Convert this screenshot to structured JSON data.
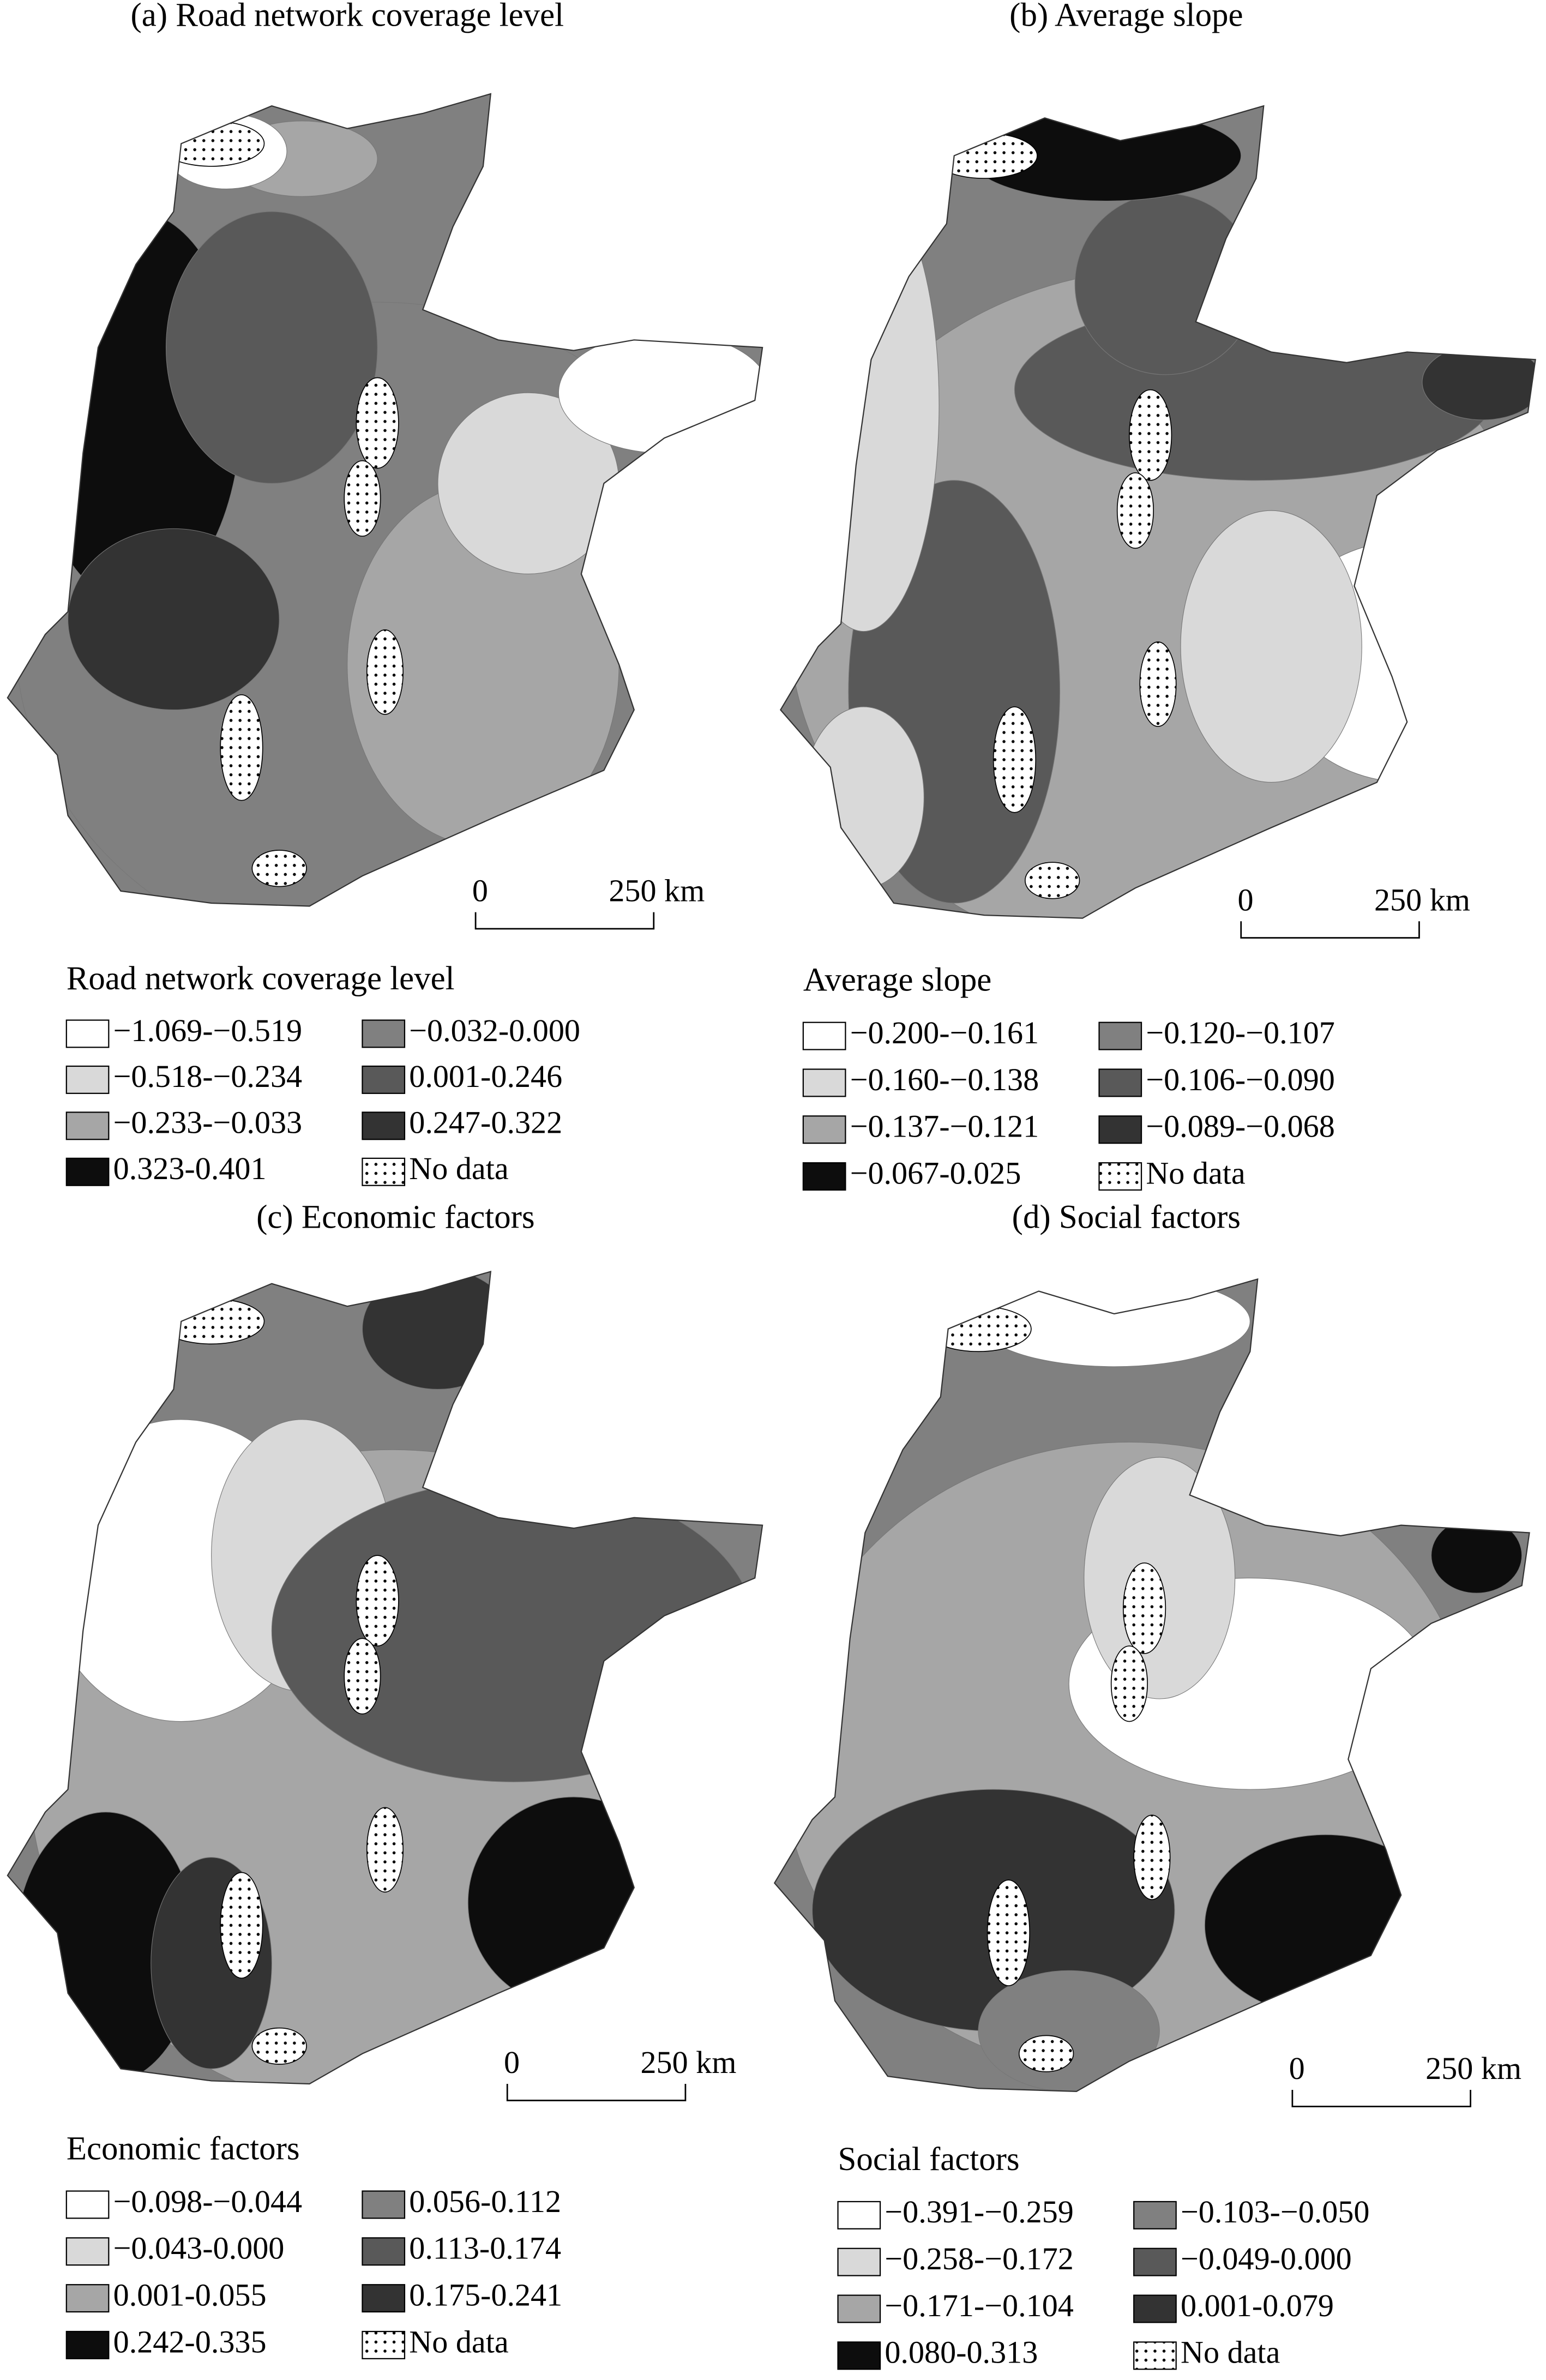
{
  "panels": [
    {
      "title": "(a) Road network coverage level",
      "legend_title": "Road network coverage level",
      "legend": [
        {
          "label": "−1.069-−0.519",
          "color": "#ffffff"
        },
        {
          "label": "−0.518-−0.234",
          "color": "#d9d9d9"
        },
        {
          "label": "−0.233-−0.033",
          "color": "#a6a6a6"
        },
        {
          "label": "−0.032-0.000",
          "color": "#808080"
        },
        {
          "label": "0.001-0.246",
          "color": "#595959"
        },
        {
          "label": "0.247-0.322",
          "color": "#333333"
        },
        {
          "label": "0.323-0.401",
          "color": "#0d0d0d"
        },
        {
          "label": "No data"
        }
      ],
      "scale": [
        "0",
        "250 km"
      ]
    },
    {
      "title": "(b) Average slope",
      "legend_title": "Average slope",
      "legend": [
        {
          "label": "−0.200-−0.161",
          "color": "#ffffff"
        },
        {
          "label": "−0.160-−0.138",
          "color": "#d9d9d9"
        },
        {
          "label": "−0.137-−0.121",
          "color": "#a6a6a6"
        },
        {
          "label": "−0.120-−0.107",
          "color": "#808080"
        },
        {
          "label": "−0.106-−0.090",
          "color": "#595959"
        },
        {
          "label": "−0.089-−0.068",
          "color": "#333333"
        },
        {
          "label": "−0.067-0.025",
          "color": "#0d0d0d"
        },
        {
          "label": "No data"
        }
      ],
      "scale": [
        "0",
        "250 km"
      ]
    },
    {
      "title": "(c) Economic factors",
      "legend_title": "Economic factors",
      "legend": [
        {
          "label": "−0.098-−0.044",
          "color": "#ffffff"
        },
        {
          "label": "−0.043-0.000",
          "color": "#d9d9d9"
        },
        {
          "label": "0.001-0.055",
          "color": "#a6a6a6"
        },
        {
          "label": "0.056-0.112",
          "color": "#808080"
        },
        {
          "label": "0.113-0.174",
          "color": "#595959"
        },
        {
          "label": "0.175-0.241",
          "color": "#333333"
        },
        {
          "label": "0.242-0.335",
          "color": "#0d0d0d"
        },
        {
          "label": "No data"
        }
      ],
      "scale": [
        "0",
        "250 km"
      ]
    },
    {
      "title": "(d) Social factors",
      "legend_title": "Social factors",
      "legend": [
        {
          "label": "−0.391-−0.259",
          "color": "#ffffff"
        },
        {
          "label": "−0.258-−0.172",
          "color": "#d9d9d9"
        },
        {
          "label": "−0.171-−0.104",
          "color": "#a6a6a6"
        },
        {
          "label": "−0.103-−0.050",
          "color": "#808080"
        },
        {
          "label": "−0.049-0.000",
          "color": "#595959"
        },
        {
          "label": "0.001-0.079",
          "color": "#333333"
        },
        {
          "label": "0.080-0.313",
          "color": "#0d0d0d"
        },
        {
          "label": "No data"
        }
      ],
      "scale": [
        "0",
        "250 km"
      ]
    }
  ]
}
